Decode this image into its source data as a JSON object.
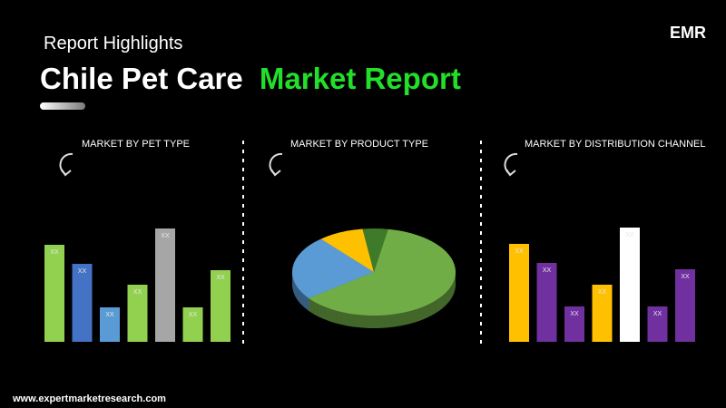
{
  "header": {
    "subtitle": "Report Highlights",
    "title_part1": "Chile Pet Care",
    "title_part2": "Market Report"
  },
  "logo": "EMR",
  "footer": "www.expertmarketresearch.com",
  "chart_data": [
    {
      "type": "bar",
      "title": "MARKET BY PET TYPE",
      "values": [
        107,
        86,
        38,
        63,
        125,
        38,
        79
      ],
      "value_labels": [
        "XX",
        "XX",
        "XX",
        "XX",
        "XX",
        "XX",
        "XX"
      ],
      "colors": [
        "#92d050",
        "#4472c4",
        "#5b9bd5",
        "#92d050",
        "#a6a6a6",
        "#92d050",
        "#92d050"
      ],
      "ylim": [
        0,
        130
      ]
    },
    {
      "type": "pie",
      "title": "MARKET BY PRODUCT TYPE",
      "values": [
        62,
        24,
        9,
        5
      ],
      "colors": [
        "#70ad47",
        "#5b9bd5",
        "#ffc000",
        "#3e7a2a"
      ]
    },
    {
      "type": "bar",
      "title": "MARKET BY DISTRIBUTION CHANNEL",
      "values": [
        108,
        87,
        39,
        63,
        126,
        39,
        80
      ],
      "value_labels": [
        "XX",
        "XX",
        "XX",
        "XX",
        "XX",
        "XX",
        "XX"
      ],
      "colors": [
        "#ffc000",
        "#7030a0",
        "#7030a0",
        "#ffc000",
        "#ffffff",
        "#7030a0",
        "#7030a0"
      ],
      "ylim": [
        0,
        130
      ]
    }
  ]
}
